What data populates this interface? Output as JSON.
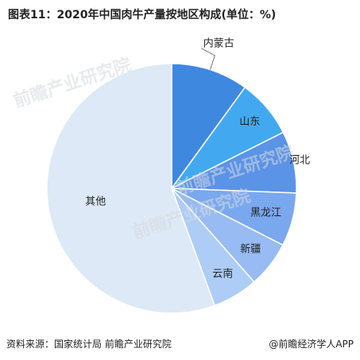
{
  "chart_data": {
    "type": "pie",
    "title": "图表11：2020年中国肉牛产量按地区构成(单位：%)",
    "categories": [
      "内蒙古",
      "山东",
      "河北",
      "黑龙江",
      "新疆",
      "云南",
      "其他"
    ],
    "values": [
      10.0,
      7.6,
      8.0,
      6.9,
      6.0,
      5.9,
      55.6
    ],
    "colors": [
      "#3f88e0",
      "#42a9f0",
      "#5b93e6",
      "#7aa8ee",
      "#97bbf2",
      "#adcdf6",
      "#dde9f6"
    ],
    "start": "12 o'clock",
    "direction": "clockwise"
  },
  "footer": {
    "source": "资料来源：国家统计局 前瞻产业研究院",
    "brand": "@前瞻经济学人APP"
  },
  "watermark": {
    "text": "前瞻产业研究院"
  }
}
